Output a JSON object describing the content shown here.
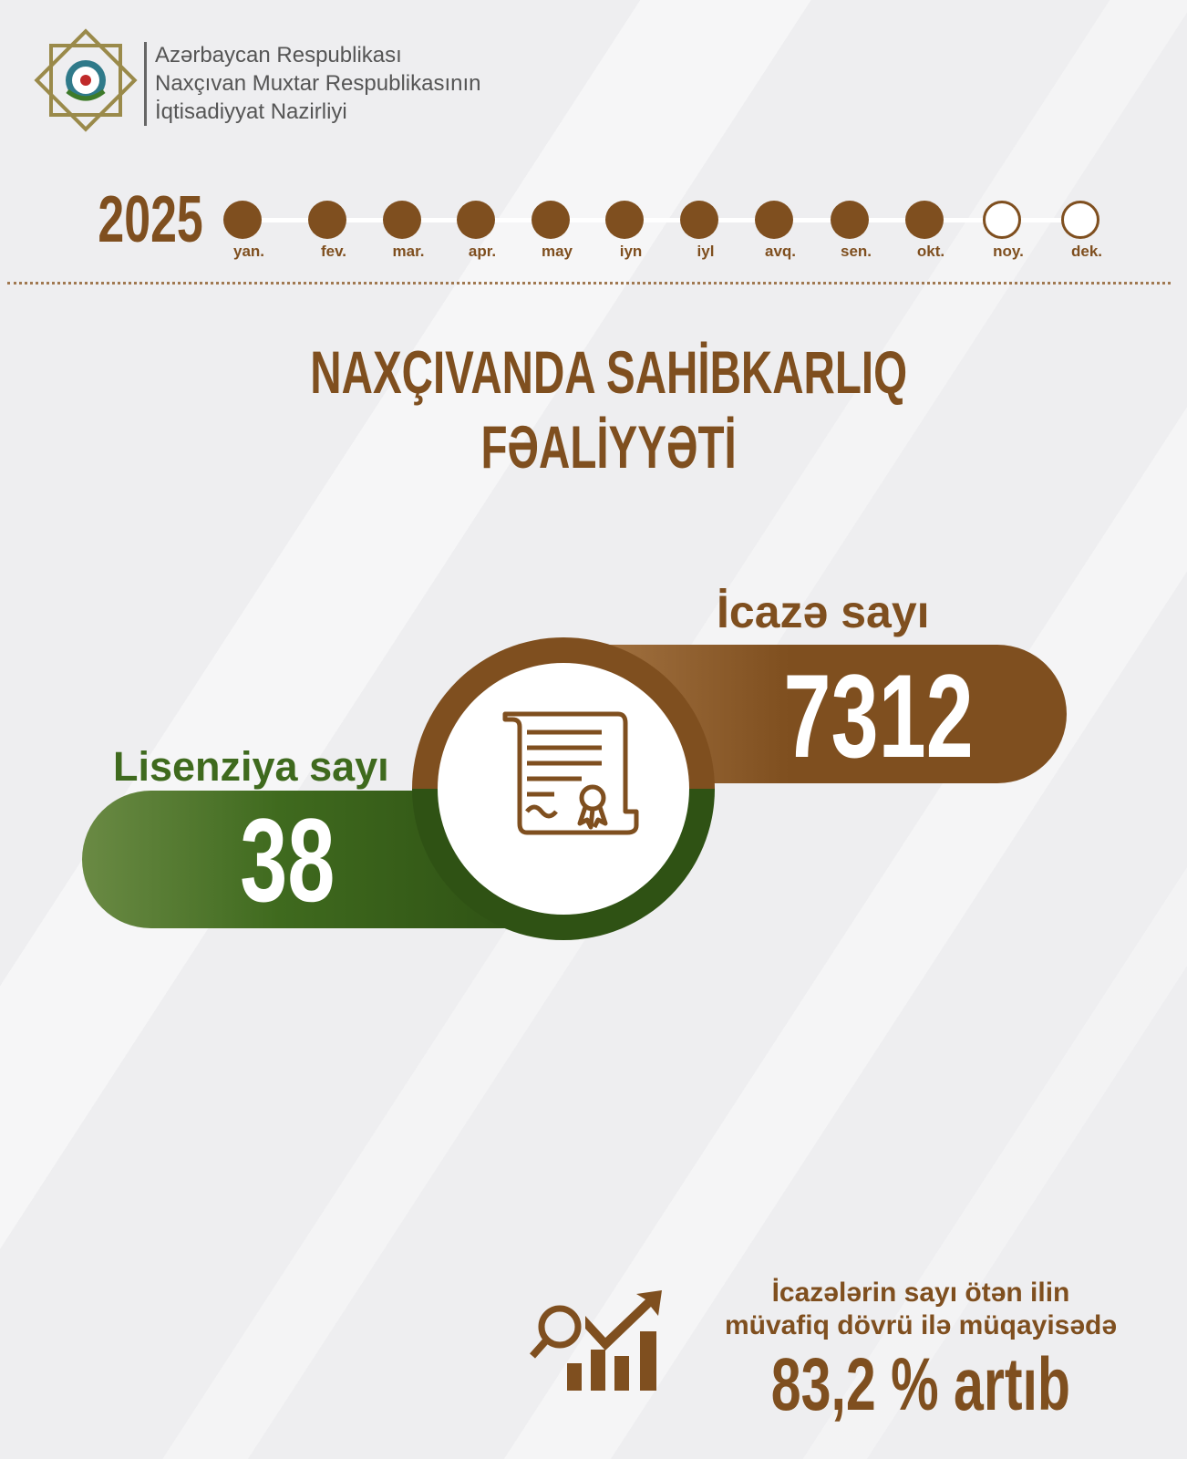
{
  "header": {
    "lines": [
      "Azərbaycan Respublikası",
      "Naxçıvan Muxtar Respublikasının",
      "İqtisadiyyat Nazirliyi"
    ],
    "logo": "ministry-emblem"
  },
  "timeline": {
    "year": "2025",
    "months": [
      {
        "label": "yan.",
        "filled": true
      },
      {
        "label": "fev.",
        "filled": true
      },
      {
        "label": "mar.",
        "filled": true
      },
      {
        "label": "apr.",
        "filled": true
      },
      {
        "label": "may",
        "filled": true
      },
      {
        "label": "iyn",
        "filled": true
      },
      {
        "label": "iyl",
        "filled": true
      },
      {
        "label": "avq.",
        "filled": true
      },
      {
        "label": "sen.",
        "filled": true
      },
      {
        "label": "okt.",
        "filled": true
      },
      {
        "label": "noy.",
        "filled": false
      },
      {
        "label": "dek.",
        "filled": false
      }
    ]
  },
  "title": {
    "line1": "NAXÇIVANDA SAHİBKARLIQ",
    "line2": "FƏALİYYƏTİ"
  },
  "permits": {
    "label": "İcazə sayı",
    "value": "7312"
  },
  "licenses": {
    "label": "Lisenziya sayı",
    "value": "38"
  },
  "center_icon": "certificate-scroll-icon",
  "footer": {
    "line1": "İcazələrin sayı ötən ilin",
    "line2": "müvafiq dövrü ilə müqayisədə",
    "highlight": "83,2 % artıb",
    "icon": "growth-chart-icon"
  },
  "colors": {
    "brown": "#7f4f1f",
    "green": "#3f6a1e",
    "background": "#eeeef0"
  }
}
